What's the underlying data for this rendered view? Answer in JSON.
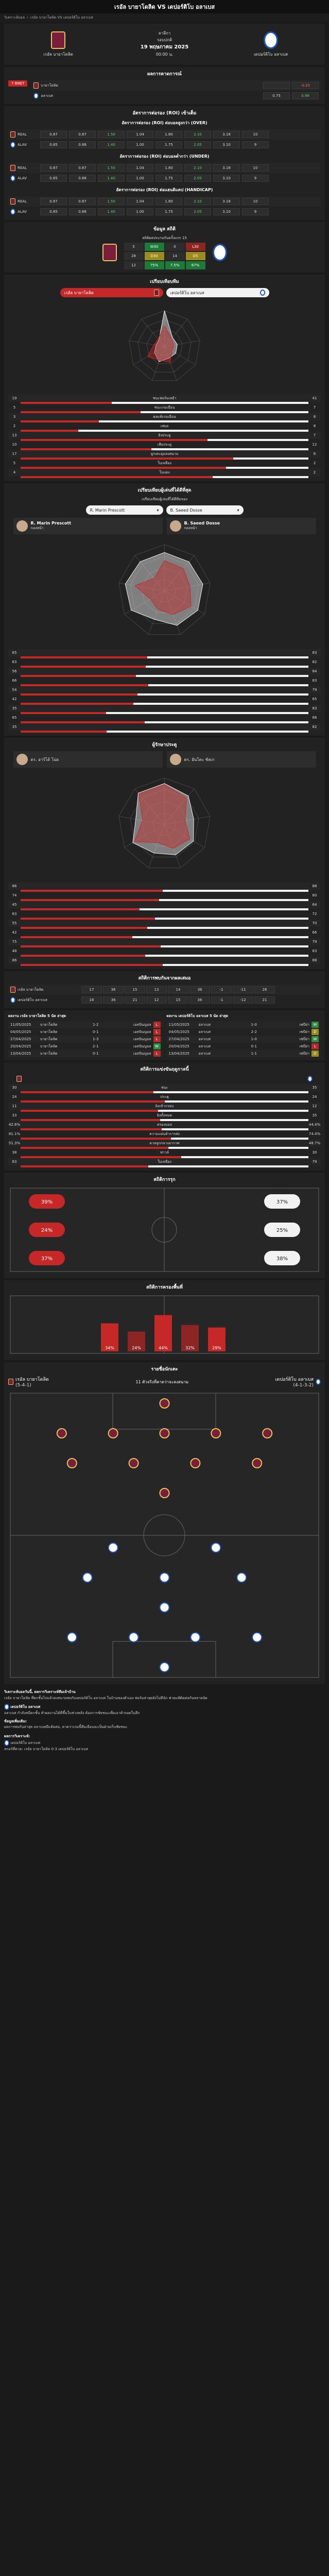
{
  "header": {
    "title": "เรอัล บายาโดลิด VS เดปอร์ติโบ อลาเบส"
  },
  "breadcrumb": {
    "home": "วิเคราะห์บอล",
    "sep": "›",
    "current": "เรอัล บายาโดลิด VS เดปอร์ติโบ อลาเบส"
  },
  "match": {
    "home": "เรอัล บายาโดลิด",
    "away": "เดปอร์ติโบ อลาเบส",
    "league": "ลาลีกา",
    "stage": "รอบปกติ",
    "date": "19 พฤษภาคม 2025",
    "time": "00:00 น."
  },
  "odds": {
    "title": "ผลการคาดการณ์",
    "btn": "7 BNET",
    "col_home": "ทีมเจ้าบ้าน",
    "col_away": "ทีมเยือน",
    "row1": {
      "team": "บายาโดลิด",
      "a": "",
      "b": "-0.25"
    },
    "row2": {
      "team": "อลาเบส",
      "a": "0.75",
      "b": "0.98"
    }
  },
  "hdp": {
    "title": "อัตราการต่อรอง (ROI) เข้าเต็ม",
    "over_title": "อัตราการต่อรอง (ROI) ต่อบอลสูงกว่า (OVER)",
    "under_title": "อัตราการต่อรอง (ROI) ต่อบอลต่ำกว่า (UNDER)",
    "hcap_title": "อัตราการต่อรอง (ROI) ต่อแฮนดิแคป (HANDICAP)",
    "rows": [
      {
        "team": "REAL",
        "vals": [
          "0.87",
          "0.87",
          "1.50",
          "1.04",
          "1.80",
          "2.10",
          "3.18",
          "10"
        ]
      },
      {
        "team": "ALAV",
        "vals": [
          "0.85",
          "0.88",
          "1.40",
          "1.00",
          "1.75",
          "2.05",
          "3.10",
          "9"
        ]
      }
    ]
  },
  "stats": {
    "title": "ข้อมูล สถิติ",
    "sub": "สถิติผลประกบกันครั้งแรก 15",
    "grid": [
      "5",
      "W30",
      "0",
      "L30",
      "28",
      "D30",
      "14",
      "D5",
      "12",
      "75%",
      "7.5%",
      "67%"
    ]
  },
  "compare": {
    "title": "เปรียบเทียบทีม",
    "home": "เรอัล บายาโดลิด",
    "away": "เดปอร์ติโบ อลาเบส",
    "rows": [
      {
        "h": "19",
        "l": "ชนะฟอร์มเหย้า",
        "a": "41"
      },
      {
        "h": "5",
        "l": "ชนะเกมเยือน",
        "a": "7"
      },
      {
        "h": "3",
        "l": "ผลแพ้เกมเยือน",
        "a": "8"
      },
      {
        "h": "2",
        "l": "เสมอ",
        "a": "8"
      },
      {
        "h": "13",
        "l": "ยิงประตู",
        "a": "7"
      },
      {
        "h": "10",
        "l": "เสียประตู",
        "a": "12"
      },
      {
        "h": "17",
        "l": "ลูกเตะมุมลงสนาม",
        "a": "6"
      },
      {
        "h": "5",
        "l": "ใบเหลือง",
        "a": "2"
      },
      {
        "h": "4",
        "l": "ใบแดง",
        "a": "2"
      }
    ]
  },
  "players": {
    "title": "เปรียบเทียบผู้เล่นที่ได้ดีที่สุด",
    "sub": "เปรียบเทียบผู้เล่นที่ได้ดีทีมของ",
    "p1": "R. Marin Prescott",
    "p2": "B. Saeed Dosse",
    "p1role": "กองหน้า",
    "p2role": "กองหน้า",
    "rows": [
      {
        "h": "65",
        "a": "83"
      },
      {
        "h": "63",
        "a": "82"
      },
      {
        "h": "56",
        "a": "84"
      },
      {
        "h": "66",
        "a": "83"
      },
      {
        "h": "54",
        "a": "79"
      },
      {
        "h": "42",
        "a": "65"
      },
      {
        "h": "35",
        "a": "83"
      },
      {
        "h": "65",
        "a": "86"
      },
      {
        "h": "35",
        "a": "82"
      }
    ]
  },
  "keepers": {
    "title": "ผู้รักษาประตู",
    "p1": "ดร. อาร์โด้ โน่ย",
    "p2": "ดร. อันโตะ ซัลเก",
    "rows": [
      {
        "h": "86",
        "a": "88"
      },
      {
        "h": "74",
        "a": "80"
      },
      {
        "h": "45",
        "a": "64"
      },
      {
        "h": "63",
        "a": "72"
      },
      {
        "h": "55",
        "a": "70"
      },
      {
        "h": "42",
        "a": "66"
      },
      {
        "h": "75",
        "a": "79"
      },
      {
        "h": "48",
        "a": "63"
      },
      {
        "h": "86",
        "a": "88"
      }
    ]
  },
  "h2h": {
    "title": "สถิติการพบกันจากผลเสมอ",
    "cols": [
      "17",
      "36",
      "15",
      "13",
      "14",
      "36",
      "-1",
      "-11",
      "26"
    ],
    "cols2": [
      "16",
      "36",
      "21",
      "12",
      "15",
      "36",
      "-1",
      "-12",
      "21"
    ]
  },
  "recent": {
    "home_title": "ผลงาน เรอัล บายาโดลิด 5 นัด ล่าสุด",
    "away_title": "ผลงาน เดปอร์ติโบ อลาเบส 5 นัด ล่าสุด",
    "home": [
      {
        "d": "11/05/2025",
        "t": "บายาโดลิด",
        "s": "1-2",
        "o": "เอสปันญอล",
        "r": "L"
      },
      {
        "d": "04/05/2025",
        "t": "บายาโดลิด",
        "s": "0-1",
        "o": "เอสปันญอล",
        "r": "L"
      },
      {
        "d": "27/04/2025",
        "t": "บายาโดลิด",
        "s": "1-3",
        "o": "เอสปันญอล",
        "r": "L"
      },
      {
        "d": "20/04/2025",
        "t": "บายาโดลิด",
        "s": "2-1",
        "o": "เอสปันญอล",
        "r": "W"
      },
      {
        "d": "13/04/2025",
        "t": "บายาโดลิด",
        "s": "0-1",
        "o": "เอสปันญอล",
        "r": "L"
      }
    ],
    "away": [
      {
        "d": "11/05/2025",
        "t": "อลาเบส",
        "s": "1-0",
        "o": "เซบีย่า",
        "r": "W"
      },
      {
        "d": "04/05/2025",
        "t": "อลาเบส",
        "s": "2-2",
        "o": "เซบีย่า",
        "r": "D"
      },
      {
        "d": "27/04/2025",
        "t": "อลาเบส",
        "s": "1-0",
        "o": "เซบีย่า",
        "r": "W"
      },
      {
        "d": "20/04/2025",
        "t": "อลาเบส",
        "s": "0-1",
        "o": "เซบีย่า",
        "r": "L"
      },
      {
        "d": "13/04/2025",
        "t": "อลาเบส",
        "s": "1-1",
        "o": "เซบีย่า",
        "r": "D"
      }
    ]
  },
  "teamstats": {
    "title": "สถิติการแข่งขันฤดูกาลนี้",
    "rows": [
      {
        "h": "30",
        "l": "ชนะ",
        "a": "35"
      },
      {
        "h": "24",
        "l": "ประตู",
        "a": "24"
      },
      {
        "h": "11",
        "l": "ยิงเข้ากรอบ",
        "a": "12"
      },
      {
        "h": "33",
        "l": "ยิงทั้งหมด",
        "a": "35"
      },
      {
        "h": "42.6%",
        "l": "ครองบอล",
        "a": "44.4%"
      },
      {
        "h": "81.1%",
        "l": "ความแม่นยำการส่ง",
        "a": "74.4%"
      },
      {
        "h": "51.3%",
        "l": "ดวลลูกกลางอากาศ",
        "a": "48.7%"
      },
      {
        "h": "38",
        "l": "ฟาวล์",
        "a": "30"
      },
      {
        "h": "63",
        "l": "ใบเหลือง",
        "a": "79"
      }
    ]
  },
  "attack": {
    "title": "สถิติการรุก",
    "h": [
      "39%",
      "24%",
      "37%"
    ],
    "a": [
      "37%",
      "25%",
      "38%"
    ]
  },
  "zones": {
    "title": "สถิติการครองพื้นที่",
    "vals": [
      "34%",
      "24%",
      "44%",
      "32%",
      "29%"
    ]
  },
  "lineup": {
    "title": "รายชื่อนักเตะ",
    "sub": "11 ตัวจริงที่คาดว่าจะลงสนาม",
    "home": "เรอัล บายาโดลิด",
    "hf": "(5-4-1)",
    "away": "เดปอร์ติโบ อลาเบส",
    "af": "(4-1-3-2)"
  },
  "footer": {
    "t1": "วิเคราะห์บอลวันนี้, ผลการวิเคราะห์ทีมเจ้าบ้าน",
    "p1": "เรอัล บายาโดลิด ที่ตกชั้นไปแล้วลงสนามพบกับเดปอร์ติโบ อลาเบส ในบ้านของตัวเอง ฟอร์มล่าสุดยังไม่ดีนัก พ่ายแพ้ติดต่อกันหลายนัด",
    "t2": "เดปอร์ติโบ อลาเบส",
    "p2": "อลาเบส กำลังหนีตกชั้น ทำผลงานได้ดีขึ้นในช่วงหลัง ต้องการชัยชนะเพื่อเอาตัวรอดในลีก",
    "t3": "ข้อมูลเพิ่มเติม:",
    "p3": "ผลการพบกันล่าสุด อลาเบสมีแต้มต่อ, คาดว่าเกมนี้ทีมเยือนจะเป็นฝ่ายเก็บชัยชนะ",
    "pred": "ผลการวิเคราะห์:",
    "pick": "เดปอร์ติโบ อลาเบส",
    "score": "สกอร์ที่คาด: เรอัล บายาโดลิด 0-3 เดปอร์ติโบ อลาเบส"
  }
}
